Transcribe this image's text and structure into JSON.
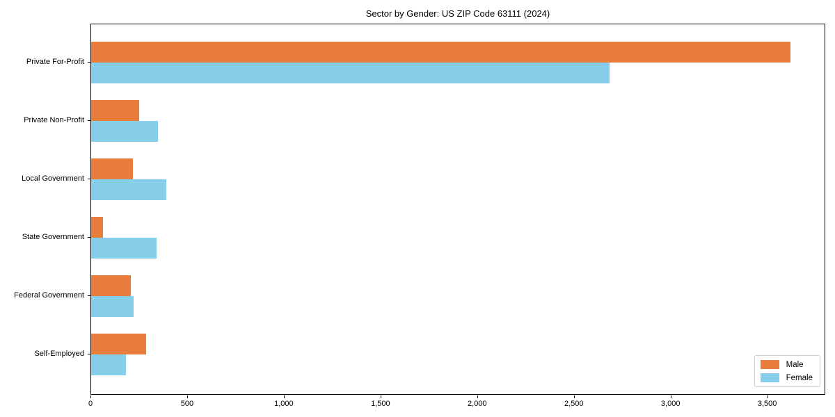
{
  "title": "Sector by Gender: US ZIP Code 63111 (2024)",
  "colors": {
    "male_bar": "#E87D3C",
    "female_bar": "#87CEEB",
    "axis": "#000000",
    "legend_border": "#cccccc",
    "background": "#ffffff"
  },
  "chart_data": {
    "type": "bar",
    "orientation": "horizontal",
    "title": "Sector by Gender: US ZIP Code 63111 (2024)",
    "xlabel": "",
    "ylabel": "",
    "categories": [
      "Private For-Profit",
      "Private Non-Profit",
      "Local Government",
      "State Government",
      "Federal Government",
      "Self-Employed"
    ],
    "series": [
      {
        "name": "Male",
        "color": "#E87D3C",
        "values": [
          3615,
          250,
          215,
          60,
          205,
          285
        ]
      },
      {
        "name": "Female",
        "color": "#87CEEB",
        "values": [
          2680,
          345,
          390,
          340,
          220,
          180
        ]
      }
    ],
    "xlim": [
      0,
      3800
    ],
    "xticks": [
      0,
      500,
      1000,
      1500,
      2000,
      2500,
      3000,
      3500
    ],
    "xtick_labels": [
      "0",
      "500",
      "1,000",
      "1,500",
      "2,000",
      "2,500",
      "3,000",
      "3,500"
    ],
    "grid": false,
    "legend_position": "lower right"
  },
  "legend": {
    "entries": [
      {
        "label": "Male"
      },
      {
        "label": "Female"
      }
    ]
  }
}
